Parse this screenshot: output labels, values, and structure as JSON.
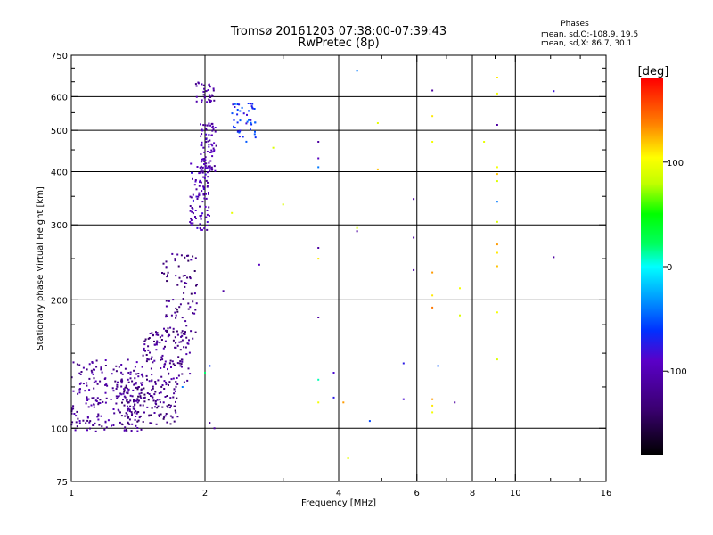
{
  "chart_data": {
    "type": "scatter",
    "title": "Tromsø 20161203 07:38:00-07:39:43",
    "subtitle": "RwPretec (8p)",
    "xlabel": "Frequency [MHz]",
    "ylabel": "Stationary phase Virtual Height [km]",
    "x_scale": "log",
    "y_scale": "log",
    "xlim": [
      1,
      16
    ],
    "ylim": [
      75,
      750
    ],
    "x_ticks": [
      1,
      2,
      4,
      6,
      8,
      10,
      16
    ],
    "x_tick_labels": [
      "1",
      "2",
      "4",
      "6",
      "8",
      "10",
      "16"
    ],
    "y_ticks": [
      75,
      100,
      200,
      300,
      400,
      500,
      600,
      750
    ],
    "y_tick_labels": [
      "75",
      "100",
      "200",
      "300",
      "400",
      "500",
      "600",
      "750"
    ],
    "x_gridlines": [
      2,
      4,
      6,
      8,
      10
    ],
    "y_gridlines": [
      100,
      200,
      300,
      400,
      500,
      600
    ],
    "grid": true,
    "stats": {
      "heading": "Phases",
      "line1": "mean, sd,O:-108.9, 19.5",
      "line2": "mean, sd,X:  86.7, 30.1"
    },
    "colorbar": {
      "label": "[deg]",
      "range": [
        -180,
        180
      ],
      "ticks": [
        100,
        0,
        -100
      ],
      "tick_labels": [
        "100",
        "0",
        "-100"
      ]
    },
    "traces": [
      {
        "name": "",
        "x_range": [
          1.0,
          1.45
        ],
        "h_range": [
          98,
          145
        ],
        "phase": -115,
        "count": 230
      },
      {
        "name": "",
        "x_range": [
          1.3,
          1.75
        ],
        "h_range": [
          102,
          128
        ],
        "phase": -125,
        "count": 130
      },
      {
        "name": "",
        "x_range": [
          1.45,
          1.85
        ],
        "h_range": [
          128,
          170
        ],
        "phase": -120,
        "count": 120
      },
      {
        "name": "",
        "x_range": [
          1.6,
          1.92
        ],
        "h_range": [
          160,
          260
        ],
        "phase": -125,
        "count": 90
      },
      {
        "name": "",
        "x_range": [
          1.85,
          2.05
        ],
        "h_range": [
          290,
          420
        ],
        "phase": -100,
        "count": 90
      },
      {
        "name": "",
        "x_range": [
          1.95,
          2.12
        ],
        "h_range": [
          400,
          520
        ],
        "phase": -105,
        "count": 80
      },
      {
        "name": "",
        "x_range": [
          1.9,
          2.1
        ],
        "h_range": [
          580,
          650
        ],
        "phase": -110,
        "count": 35
      },
      {
        "name": "",
        "x_range": [
          2.3,
          2.6
        ],
        "h_range": [
          470,
          580
        ],
        "phase": -65,
        "count": 45
      }
    ],
    "scatter_points": [
      {
        "x": 3.6,
        "y": 470,
        "phase": -110
      },
      {
        "x": 3.6,
        "y": 430,
        "phase": -95
      },
      {
        "x": 3.6,
        "y": 410,
        "phase": -40
      },
      {
        "x": 3.6,
        "y": 265,
        "phase": -110
      },
      {
        "x": 3.6,
        "y": 250,
        "phase": 110
      },
      {
        "x": 3.6,
        "y": 182,
        "phase": -110
      },
      {
        "x": 3.6,
        "y": 130,
        "phase": 10
      },
      {
        "x": 3.6,
        "y": 115,
        "phase": 100
      },
      {
        "x": 3.9,
        "y": 135,
        "phase": -85
      },
      {
        "x": 3.9,
        "y": 118,
        "phase": -75
      },
      {
        "x": 4.1,
        "y": 115,
        "phase": 130
      },
      {
        "x": 4.2,
        "y": 85,
        "phase": 95
      },
      {
        "x": 4.4,
        "y": 690,
        "phase": -40
      },
      {
        "x": 4.4,
        "y": 295,
        "phase": 90
      },
      {
        "x": 4.4,
        "y": 290,
        "phase": -110
      },
      {
        "x": 4.7,
        "y": 104,
        "phase": -55
      },
      {
        "x": 4.9,
        "y": 520,
        "phase": 95
      },
      {
        "x": 4.9,
        "y": 405,
        "phase": 120
      },
      {
        "x": 5.6,
        "y": 142,
        "phase": -75
      },
      {
        "x": 5.6,
        "y": 117,
        "phase": -85
      },
      {
        "x": 5.9,
        "y": 345,
        "phase": -110
      },
      {
        "x": 5.9,
        "y": 280,
        "phase": -110
      },
      {
        "x": 5.9,
        "y": 235,
        "phase": -110
      },
      {
        "x": 6.5,
        "y": 620,
        "phase": -110
      },
      {
        "x": 6.5,
        "y": 540,
        "phase": 110
      },
      {
        "x": 6.5,
        "y": 470,
        "phase": 100
      },
      {
        "x": 6.5,
        "y": 232,
        "phase": 130
      },
      {
        "x": 6.5,
        "y": 205,
        "phase": 110
      },
      {
        "x": 6.5,
        "y": 192,
        "phase": 140
      },
      {
        "x": 6.5,
        "y": 117,
        "phase": 130
      },
      {
        "x": 6.5,
        "y": 113,
        "phase": 110
      },
      {
        "x": 6.5,
        "y": 109,
        "phase": 100
      },
      {
        "x": 6.7,
        "y": 140,
        "phase": -50
      },
      {
        "x": 7.3,
        "y": 115,
        "phase": -110
      },
      {
        "x": 7.5,
        "y": 213,
        "phase": 100
      },
      {
        "x": 7.5,
        "y": 184,
        "phase": 90
      },
      {
        "x": 8.5,
        "y": 470,
        "phase": 95
      },
      {
        "x": 9.1,
        "y": 665,
        "phase": 110
      },
      {
        "x": 9.1,
        "y": 610,
        "phase": 100
      },
      {
        "x": 9.1,
        "y": 515,
        "phase": -110
      },
      {
        "x": 9.1,
        "y": 410,
        "phase": 100
      },
      {
        "x": 9.1,
        "y": 395,
        "phase": 120
      },
      {
        "x": 9.1,
        "y": 380,
        "phase": 90
      },
      {
        "x": 9.1,
        "y": 340,
        "phase": -40
      },
      {
        "x": 9.1,
        "y": 305,
        "phase": 90
      },
      {
        "x": 9.1,
        "y": 270,
        "phase": 130
      },
      {
        "x": 9.1,
        "y": 258,
        "phase": 110
      },
      {
        "x": 9.1,
        "y": 240,
        "phase": 120
      },
      {
        "x": 9.1,
        "y": 187,
        "phase": 100
      },
      {
        "x": 9.1,
        "y": 145,
        "phase": 90
      },
      {
        "x": 12.2,
        "y": 618,
        "phase": -80
      },
      {
        "x": 12.2,
        "y": 252,
        "phase": -110
      },
      {
        "x": 2.65,
        "y": 242,
        "phase": -95
      },
      {
        "x": 2.85,
        "y": 455,
        "phase": 90
      },
      {
        "x": 3.0,
        "y": 335,
        "phase": 90
      },
      {
        "x": 2.3,
        "y": 320,
        "phase": 95
      },
      {
        "x": 2.2,
        "y": 210,
        "phase": -110
      },
      {
        "x": 2.1,
        "y": 100,
        "phase": -110
      },
      {
        "x": 2.05,
        "y": 103,
        "phase": -120
      },
      {
        "x": 2.05,
        "y": 140,
        "phase": -60
      },
      {
        "x": 2.0,
        "y": 135,
        "phase": 20
      },
      {
        "x": 1.78,
        "y": 125,
        "phase": -40
      }
    ]
  }
}
